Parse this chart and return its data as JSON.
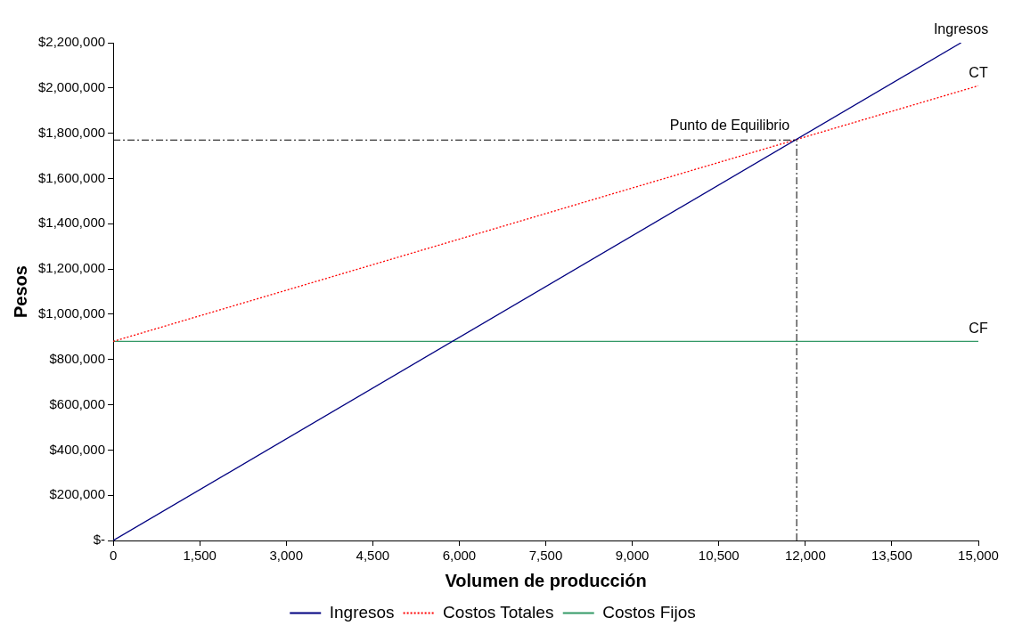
{
  "chart_data": {
    "type": "line",
    "xlabel": "Volumen de producción",
    "ylabel": "Pesos",
    "xlim": [
      0,
      15000
    ],
    "xticks": [
      0,
      {
        "value": 1500,
        "label": "1,500"
      },
      {
        "value": 3000,
        "label": "3,000"
      },
      {
        "value": 4500,
        "label": "4,500"
      },
      {
        "value": 6000,
        "label": "6,000"
      },
      {
        "value": 7500,
        "label": "7,500"
      },
      {
        "value": 9000,
        "label": "9,000"
      },
      {
        "value": 10500,
        "label": "10,500"
      },
      {
        "value": 12000,
        "label": "12,000"
      },
      {
        "value": 13500,
        "label": "13,500"
      },
      {
        "value": 15000,
        "label": "15,000"
      }
    ],
    "ylim": [
      0,
      2200000
    ],
    "yticks": [
      {
        "value": 0,
        "label": "$-"
      },
      {
        "value": 200000,
        "label": "$200,000"
      },
      {
        "value": 400000,
        "label": "$400,000"
      },
      {
        "value": 600000,
        "label": "$600,000"
      },
      {
        "value": 800000,
        "label": "$800,000"
      },
      {
        "value": 1000000,
        "label": "$1,000,000"
      },
      {
        "value": 1200000,
        "label": "$1,200,000"
      },
      {
        "value": 1400000,
        "label": "$1,400,000"
      },
      {
        "value": 1600000,
        "label": "$1,600,000"
      },
      {
        "value": 1800000,
        "label": "$1,800,000"
      },
      {
        "value": 2000000,
        "label": "$2,000,000"
      },
      {
        "value": 2200000,
        "label": "$2,200,000"
      }
    ],
    "series": [
      {
        "name": "Ingresos",
        "color": "#000080",
        "x": [
          0,
          14700
        ],
        "values": [
          0,
          2200000
        ],
        "line_style": "solid"
      },
      {
        "name": "Costos Totales",
        "color": "#ff0000",
        "x": [
          0,
          15000
        ],
        "values": [
          880000,
          2010000
        ],
        "line_style": "dotted"
      },
      {
        "name": "Costos Fijos",
        "color": "#339966",
        "x": [
          0,
          15000
        ],
        "values": [
          880000,
          880000
        ],
        "line_style": "solid"
      }
    ],
    "ref_lines": [
      {
        "axis": "x",
        "value": 11850,
        "color": "#000000",
        "line_style": "dashed"
      },
      {
        "axis": "y",
        "value": 1770000,
        "color": "#000000",
        "line_style": "dashed"
      }
    ],
    "annotations": [
      {
        "text": "Punto de Equilibrio",
        "x": 11850,
        "y": 1770000
      },
      {
        "text": "Ingresos",
        "x": 14700,
        "y": 2200000
      },
      {
        "text": "CT",
        "x": 15000,
        "y": 2010000
      },
      {
        "text": "CF",
        "x": 15000,
        "y": 880000
      }
    ],
    "grid": false,
    "legend": "bottom",
    "marker": "none"
  }
}
